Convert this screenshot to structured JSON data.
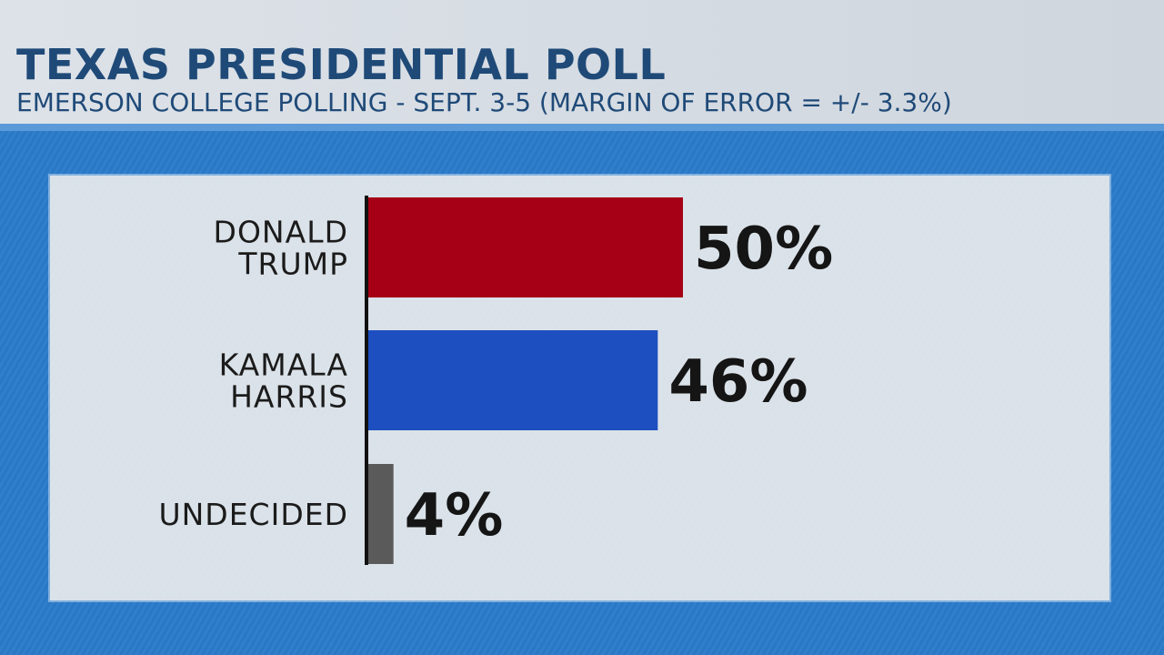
{
  "header": {
    "title": "TEXAS PRESIDENTIAL POLL",
    "subtitle": "EMERSON COLLEGE POLLING - SEPT. 3-5  (MARGIN OF ERROR = +/- 3.3%)"
  },
  "chart_data": {
    "type": "bar",
    "orientation": "horizontal",
    "title": "TEXAS PRESIDENTIAL POLL",
    "subtitle": "EMERSON COLLEGE POLLING - SEPT. 3-5  (MARGIN OF ERROR = +/- 3.3%)",
    "categories": [
      [
        "DONALD",
        "TRUMP"
      ],
      [
        "KAMALA",
        "HARRIS"
      ],
      [
        "UNDECIDED"
      ]
    ],
    "values": [
      50,
      46,
      4
    ],
    "data_labels": [
      "50%",
      "46%",
      "4%"
    ],
    "colors": [
      "#a50016",
      "#1d4fc0",
      "#5a5a5a"
    ],
    "unit": "%",
    "grid": false
  }
}
